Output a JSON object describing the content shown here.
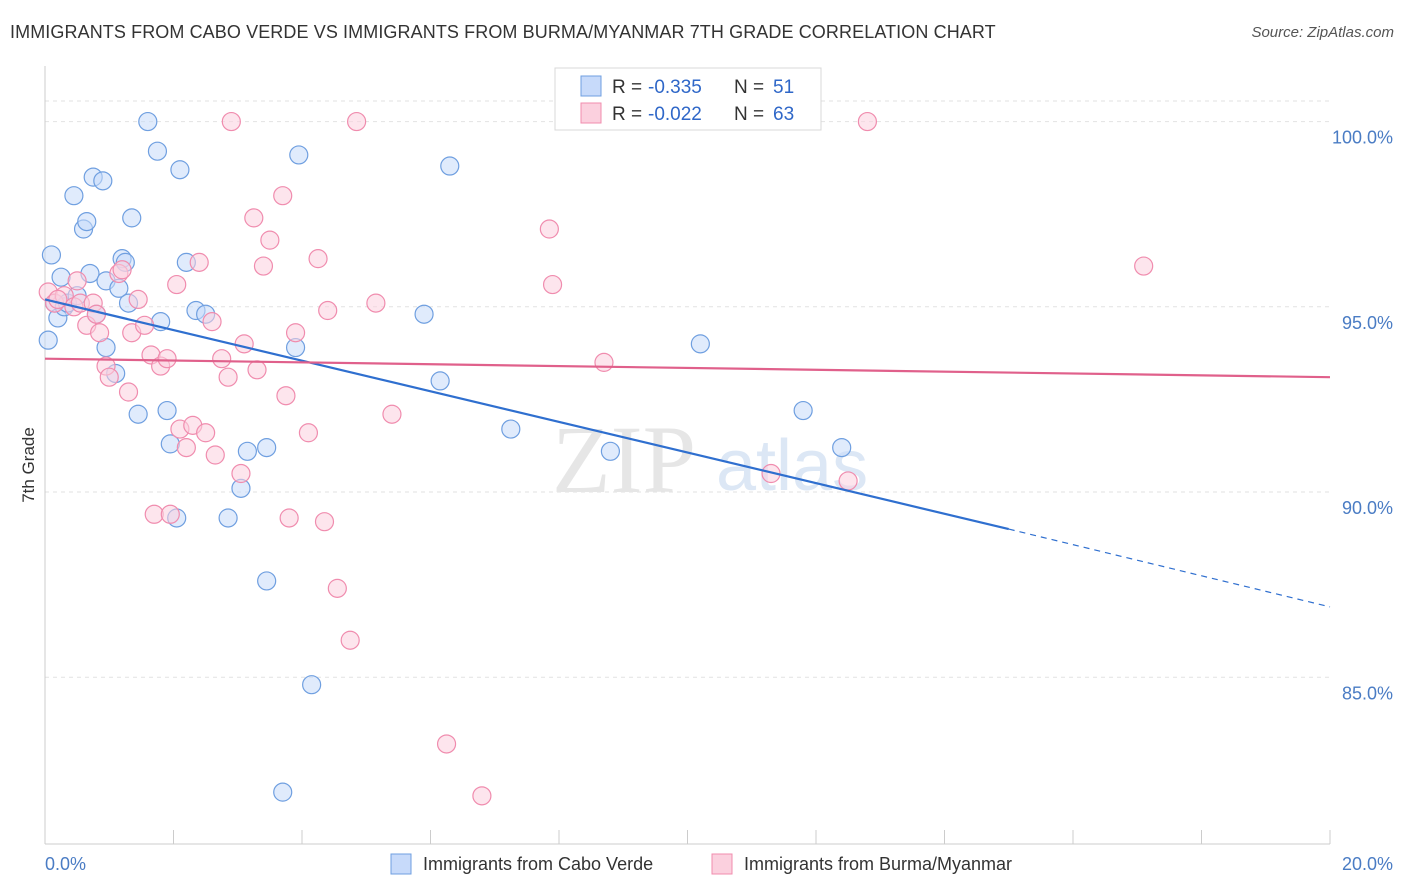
{
  "title": "IMMIGRANTS FROM CABO VERDE VS IMMIGRANTS FROM BURMA/MYANMAR 7TH GRADE CORRELATION CHART",
  "source": "Source: ZipAtlas.com",
  "colors": {
    "blue": "#6f9fe0",
    "blue_line": "#2f6fcf",
    "pink": "#f08cae",
    "pink_line": "#e0608b"
  },
  "legend": {
    "r_label": "R =",
    "n_label": "N =",
    "series": [
      {
        "r": "-0.335",
        "n": "51"
      },
      {
        "r": "-0.022",
        "n": "63"
      }
    ]
  },
  "chart_data": {
    "type": "scatter",
    "xlabel": "",
    "ylabel": "7th Grade",
    "xlim": [
      0,
      20
    ],
    "ylim": [
      80.5,
      101.5
    ],
    "x_tick_labels": [
      "0.0%",
      "20.0%"
    ],
    "y_tick_labels": [
      "100.0%",
      "95.0%",
      "90.0%",
      "85.0%"
    ],
    "y_ticks": [
      100,
      95,
      90,
      85
    ],
    "watermark": "ZIPatlas",
    "series": [
      {
        "name": "Immigrants from Cabo Verde",
        "trend": {
          "x": [
            0,
            15
          ],
          "y": [
            95.2,
            89.0
          ],
          "dashed_to": [
            20,
            86.9
          ]
        },
        "points": [
          [
            0.05,
            94.1
          ],
          [
            0.1,
            96.4
          ],
          [
            0.15,
            95.1
          ],
          [
            0.2,
            94.7
          ],
          [
            0.25,
            95.8
          ],
          [
            0.3,
            95.0
          ],
          [
            0.35,
            95.1
          ],
          [
            0.45,
            98.0
          ],
          [
            0.5,
            95.3
          ],
          [
            0.6,
            97.1
          ],
          [
            0.65,
            97.3
          ],
          [
            0.7,
            95.9
          ],
          [
            0.75,
            98.5
          ],
          [
            0.8,
            94.8
          ],
          [
            0.9,
            98.4
          ],
          [
            0.95,
            95.7
          ],
          [
            0.95,
            93.9
          ],
          [
            1.1,
            93.2
          ],
          [
            1.15,
            95.5
          ],
          [
            1.2,
            96.3
          ],
          [
            1.3,
            95.1
          ],
          [
            1.35,
            97.4
          ],
          [
            1.45,
            92.1
          ],
          [
            1.6,
            100.0
          ],
          [
            1.75,
            99.2
          ],
          [
            1.8,
            94.6
          ],
          [
            1.9,
            92.2
          ],
          [
            1.95,
            91.3
          ],
          [
            2.05,
            89.3
          ],
          [
            2.1,
            98.7
          ],
          [
            2.2,
            96.2
          ],
          [
            2.35,
            94.9
          ],
          [
            2.5,
            94.8
          ],
          [
            2.85,
            89.3
          ],
          [
            3.05,
            90.1
          ],
          [
            3.15,
            91.1
          ],
          [
            3.45,
            91.2
          ],
          [
            3.45,
            87.6
          ],
          [
            3.7,
            81.9
          ],
          [
            3.9,
            93.9
          ],
          [
            3.95,
            99.1
          ],
          [
            4.15,
            84.8
          ],
          [
            5.9,
            94.8
          ],
          [
            6.15,
            93.0
          ],
          [
            6.3,
            98.8
          ],
          [
            7.25,
            91.7
          ],
          [
            8.8,
            91.1
          ],
          [
            10.2,
            94.0
          ],
          [
            11.8,
            92.2
          ],
          [
            12.4,
            91.2
          ],
          [
            1.25,
            96.2
          ]
        ]
      },
      {
        "name": "Immigrants from Burma/Myanmar",
        "trend": {
          "x": [
            0,
            20
          ],
          "y": [
            93.6,
            93.1
          ]
        },
        "points": [
          [
            0.05,
            95.4
          ],
          [
            0.15,
            95.1
          ],
          [
            0.3,
            95.3
          ],
          [
            0.45,
            95.0
          ],
          [
            0.5,
            95.7
          ],
          [
            0.55,
            95.1
          ],
          [
            0.65,
            94.5
          ],
          [
            0.75,
            95.1
          ],
          [
            0.8,
            94.8
          ],
          [
            0.85,
            94.3
          ],
          [
            0.95,
            93.4
          ],
          [
            1.0,
            93.1
          ],
          [
            1.15,
            95.9
          ],
          [
            1.2,
            96.0
          ],
          [
            1.3,
            92.7
          ],
          [
            1.35,
            94.3
          ],
          [
            1.45,
            95.2
          ],
          [
            1.55,
            94.5
          ],
          [
            1.65,
            93.7
          ],
          [
            1.7,
            89.4
          ],
          [
            1.8,
            93.4
          ],
          [
            1.9,
            93.6
          ],
          [
            1.95,
            89.4
          ],
          [
            2.05,
            95.6
          ],
          [
            2.1,
            91.7
          ],
          [
            2.2,
            91.2
          ],
          [
            2.3,
            91.8
          ],
          [
            2.4,
            96.2
          ],
          [
            2.5,
            91.6
          ],
          [
            2.6,
            94.6
          ],
          [
            2.65,
            91.0
          ],
          [
            2.75,
            93.6
          ],
          [
            2.85,
            93.1
          ],
          [
            2.9,
            100.0
          ],
          [
            3.05,
            90.5
          ],
          [
            3.1,
            94.0
          ],
          [
            3.25,
            97.4
          ],
          [
            3.3,
            93.3
          ],
          [
            3.4,
            96.1
          ],
          [
            3.5,
            96.8
          ],
          [
            3.7,
            98.0
          ],
          [
            3.75,
            92.6
          ],
          [
            3.8,
            89.3
          ],
          [
            3.9,
            94.3
          ],
          [
            4.1,
            91.6
          ],
          [
            4.25,
            96.3
          ],
          [
            4.35,
            89.2
          ],
          [
            4.4,
            94.9
          ],
          [
            4.55,
            87.4
          ],
          [
            4.75,
            86.0
          ],
          [
            4.85,
            100.0
          ],
          [
            5.15,
            95.1
          ],
          [
            5.4,
            92.1
          ],
          [
            6.25,
            83.2
          ],
          [
            6.8,
            81.8
          ],
          [
            7.85,
            97.1
          ],
          [
            7.9,
            95.6
          ],
          [
            8.7,
            93.5
          ],
          [
            11.3,
            90.5
          ],
          [
            12.5,
            90.3
          ],
          [
            12.8,
            100.0
          ],
          [
            17.1,
            96.1
          ],
          [
            0.2,
            95.2
          ]
        ]
      }
    ]
  }
}
